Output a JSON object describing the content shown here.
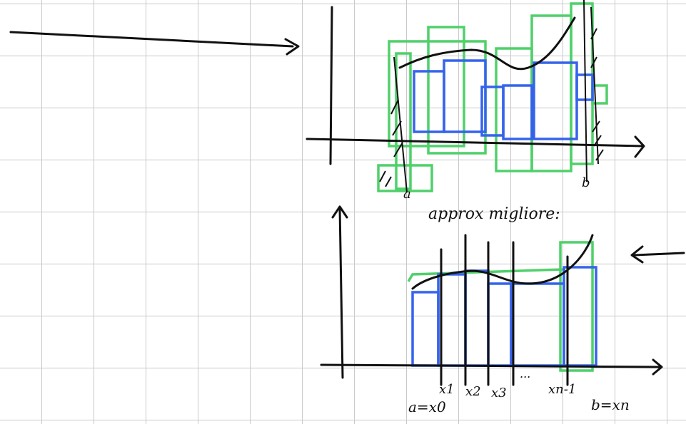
{
  "top_sketch": {
    "labels": [
      "a",
      "b"
    ]
  },
  "bottom_sketch": {
    "heading": "approx migliore:",
    "x_labels": [
      "a=x0",
      "x1",
      "x2",
      "x3",
      "...",
      "xn-1",
      "b=xn"
    ]
  }
}
